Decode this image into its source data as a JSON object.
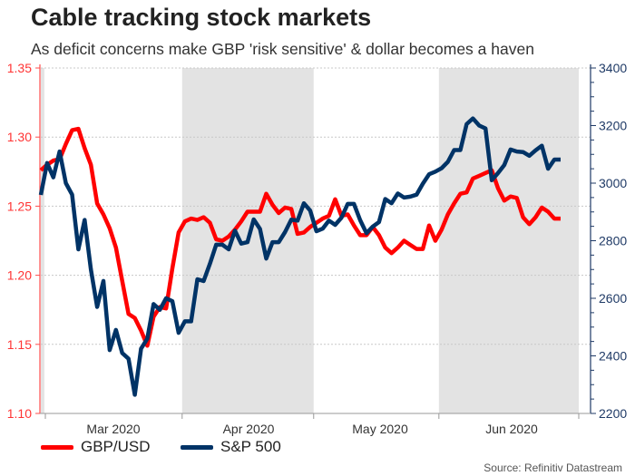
{
  "title": "Cable tracking stock markets",
  "subtitle": "As deficit concerns make GBP 'risk sensitive' & dollar becomes a haven",
  "source": "Source: Refinitiv Datastream",
  "chart_data": {
    "type": "line",
    "title": "Cable tracking stock markets",
    "x_tick_labels": [
      "Mar 2020",
      "Apr 2020",
      "May 2020",
      "Jun 2020"
    ],
    "shaded_months": [
      "Feb 2020",
      "Apr 2020",
      "Jun 2020"
    ],
    "left_axis": {
      "ylim": [
        1.1,
        1.35
      ],
      "ticks": [
        "1.10",
        "1.15",
        "1.20",
        "1.25",
        "1.30",
        "1.35"
      ],
      "color": "#ff1a1a"
    },
    "right_axis": {
      "ylim": [
        2200,
        3400
      ],
      "ticks": [
        "2200",
        "2400",
        "2600",
        "2800",
        "3000",
        "3200",
        "3400"
      ],
      "color": "#1f3a66"
    },
    "grid": true,
    "legend_position": "bottom-left",
    "x": [
      "2020-02-28",
      "2020-03-02",
      "2020-03-03",
      "2020-03-04",
      "2020-03-05",
      "2020-03-06",
      "2020-03-09",
      "2020-03-10",
      "2020-03-11",
      "2020-03-12",
      "2020-03-13",
      "2020-03-16",
      "2020-03-17",
      "2020-03-18",
      "2020-03-19",
      "2020-03-20",
      "2020-03-23",
      "2020-03-24",
      "2020-03-25",
      "2020-03-26",
      "2020-03-27",
      "2020-03-30",
      "2020-03-31",
      "2020-04-01",
      "2020-04-02",
      "2020-04-03",
      "2020-04-06",
      "2020-04-07",
      "2020-04-08",
      "2020-04-09",
      "2020-04-13",
      "2020-04-14",
      "2020-04-15",
      "2020-04-16",
      "2020-04-17",
      "2020-04-20",
      "2020-04-21",
      "2020-04-22",
      "2020-04-23",
      "2020-04-24",
      "2020-04-27",
      "2020-04-28",
      "2020-04-29",
      "2020-04-30",
      "2020-05-01",
      "2020-05-04",
      "2020-05-05",
      "2020-05-06",
      "2020-05-07",
      "2020-05-08",
      "2020-05-11",
      "2020-05-12",
      "2020-05-13",
      "2020-05-14",
      "2020-05-15",
      "2020-05-18",
      "2020-05-19",
      "2020-05-20",
      "2020-05-21",
      "2020-05-22",
      "2020-05-26",
      "2020-05-27",
      "2020-05-28",
      "2020-05-29",
      "2020-06-01",
      "2020-06-02",
      "2020-06-03",
      "2020-06-04",
      "2020-06-05",
      "2020-06-08",
      "2020-06-09",
      "2020-06-10",
      "2020-06-11",
      "2020-06-12",
      "2020-06-15",
      "2020-06-16",
      "2020-06-17",
      "2020-06-18",
      "2020-06-19",
      "2020-06-22",
      "2020-06-23",
      "2020-06-24",
      "2020-06-25",
      "2020-06-26"
    ],
    "series": [
      {
        "name": "GBP/USD",
        "axis": "left",
        "color": "#ff0000",
        "values": [
          1.276,
          1.28,
          1.283,
          1.284,
          1.295,
          1.305,
          1.306,
          1.292,
          1.28,
          1.252,
          1.244,
          1.234,
          1.22,
          1.196,
          1.172,
          1.169,
          1.16,
          1.149,
          1.17,
          1.177,
          1.176,
          1.205,
          1.231,
          1.239,
          1.241,
          1.24,
          1.242,
          1.238,
          1.226,
          1.225,
          1.228,
          1.233,
          1.239,
          1.246,
          1.246,
          1.246,
          1.259,
          1.251,
          1.245,
          1.249,
          1.248,
          1.23,
          1.231,
          1.235,
          1.238,
          1.241,
          1.243,
          1.255,
          1.243,
          1.244,
          1.236,
          1.229,
          1.229,
          1.235,
          1.229,
          1.22,
          1.216,
          1.22,
          1.225,
          1.222,
          1.219,
          1.219,
          1.236,
          1.225,
          1.233,
          1.244,
          1.252,
          1.259,
          1.26,
          1.27,
          1.272,
          1.274,
          1.276,
          1.263,
          1.254,
          1.257,
          1.256,
          1.242,
          1.237,
          1.242,
          1.249,
          1.246,
          1.241,
          1.241
        ]
      },
      {
        "name": "S&P 500",
        "axis": "right",
        "color": "#003366",
        "values": [
          2959,
          3070,
          3020,
          3110,
          3000,
          2960,
          2770,
          2872,
          2700,
          2570,
          2660,
          2420,
          2490,
          2410,
          2390,
          2265,
          2425,
          2460,
          2580,
          2560,
          2600,
          2590,
          2480,
          2520,
          2520,
          2666,
          2660,
          2720,
          2786,
          2786,
          2770,
          2835,
          2790,
          2795,
          2874,
          2841,
          2738,
          2795,
          2795,
          2830,
          2873,
          2870,
          2930,
          2905,
          2833,
          2842,
          2870,
          2855,
          2880,
          2928,
          2928,
          2871,
          2826,
          2849,
          2865,
          2945,
          2930,
          2964,
          2950,
          2953,
          2960,
          2998,
          3031,
          3040,
          3052,
          3074,
          3115,
          3115,
          3205,
          3225,
          3200,
          3190,
          3010,
          3035,
          3063,
          3117,
          3110,
          3108,
          3095,
          3114,
          3130,
          3050,
          3082,
          3082
        ]
      }
    ]
  }
}
